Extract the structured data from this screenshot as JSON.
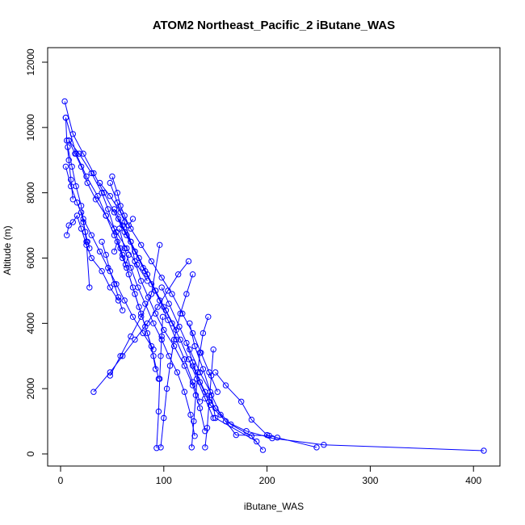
{
  "chart_data": {
    "type": "line",
    "title": "ATOM2 Northeast_Pacific_2 iButane_WAS",
    "xlabel": "iButane_WAS",
    "ylabel": "Altitude (m)",
    "xlim": [
      0,
      425
    ],
    "ylim": [
      0,
      12000
    ],
    "xticks": [
      0,
      100,
      200,
      300,
      400
    ],
    "yticks": [
      0,
      2000,
      4000,
      6000,
      8000,
      10000,
      12000
    ],
    "xtick_labels": [
      "0",
      "100",
      "200",
      "300",
      "400"
    ],
    "ytick_labels": [
      "0",
      "2000",
      "4000",
      "6000",
      "8000",
      "10000",
      "12000"
    ],
    "series_color": "#0000ff",
    "marker": "open-circle",
    "grid": false,
    "legend": "none",
    "series": [
      {
        "x": [
          410,
          255,
          205,
          180,
          160,
          145,
          135,
          128,
          122
        ],
        "y": [
          100,
          280,
          480,
          700,
          1000,
          1500,
          2200,
          2800,
          3400
        ]
      },
      {
        "x": [
          190,
          150,
          146,
          138,
          130,
          125
        ],
        "y": [
          380,
          1100,
          1800,
          2600,
          3300,
          4000
        ]
      },
      {
        "x": [
          248,
          210,
          200,
          185,
          175,
          160,
          150
        ],
        "y": [
          200,
          500,
          580,
          1050,
          1600,
          2100,
          2500
        ]
      },
      {
        "x": [
          196,
          185,
          165,
          150,
          140,
          128
        ],
        "y": [
          120,
          550,
          900,
          1400,
          1900,
          2700
        ]
      },
      {
        "x": [
          202,
          170,
          155,
          145,
          135,
          125,
          115,
          105,
          98
        ],
        "y": [
          560,
          580,
          1200,
          1900,
          2500,
          3200,
          3900,
          4600,
          5100
        ]
      },
      {
        "x": [
          93,
          95,
          96,
          97,
          98,
          99
        ],
        "y": [
          180,
          1300,
          2300,
          3000,
          3600,
          4200
        ]
      },
      {
        "x": [
          97,
          100,
          103,
          106,
          110,
          116,
          122,
          128
        ],
        "y": [
          200,
          1100,
          2000,
          2700,
          3500,
          4300,
          4900,
          5500
        ]
      },
      {
        "x": [
          127,
          129,
          131,
          133,
          135,
          138,
          143
        ],
        "y": [
          200,
          1000,
          1800,
          2500,
          3100,
          3700,
          4200
        ]
      },
      {
        "x": [
          140,
          142,
          144,
          146,
          148
        ],
        "y": [
          200,
          800,
          1600,
          2400,
          3200
        ]
      },
      {
        "x": [
          130,
          126,
          120,
          113,
          105,
          98,
          90,
          82,
          75,
          68,
          62,
          57
        ],
        "y": [
          550,
          1200,
          1900,
          2500,
          3000,
          3500,
          4000,
          4600,
          5100,
          5700,
          6300,
          6900
        ]
      },
      {
        "x": [
          140,
          135,
          128,
          120,
          110,
          100,
          92,
          85,
          78,
          72,
          68,
          62,
          55,
          48
        ],
        "y": [
          700,
          1400,
          2100,
          2700,
          3300,
          3800,
          4300,
          4800,
          5300,
          5900,
          6500,
          7100,
          7700,
          8300
        ]
      },
      {
        "x": [
          92,
          88,
          82,
          76,
          70,
          64,
          58,
          52,
          46,
          40,
          30,
          18,
          8
        ],
        "y": [
          2600,
          3300,
          3900,
          4500,
          5100,
          5700,
          6300,
          6900,
          7500,
          8000,
          8600,
          9200,
          9600
        ]
      },
      {
        "x": [
          95,
          90,
          84,
          78,
          72,
          66,
          60,
          52,
          44,
          36,
          25,
          15,
          5
        ],
        "y": [
          2300,
          3000,
          3700,
          4300,
          4900,
          5500,
          6100,
          6700,
          7300,
          7900,
          8500,
          9200,
          10300
        ]
      },
      {
        "x": [
          148,
          140,
          132,
          124,
          116,
          108,
          100,
          92,
          84,
          76,
          68,
          60,
          52
        ],
        "y": [
          1100,
          1700,
          2300,
          2900,
          3500,
          4000,
          4500,
          5000,
          5500,
          6000,
          6500,
          7000,
          7500
        ]
      },
      {
        "x": [
          135,
          128,
          120,
          112,
          104,
          96,
          88,
          80,
          72,
          64,
          56
        ],
        "y": [
          1600,
          2200,
          2900,
          3500,
          4100,
          4700,
          5200,
          5700,
          6200,
          6700,
          7200
        ]
      },
      {
        "x": [
          152,
          144,
          136,
          128,
          118,
          108,
          98,
          88,
          78,
          68,
          58,
          48,
          38
        ],
        "y": [
          1900,
          2500,
          3100,
          3700,
          4300,
          4900,
          5400,
          5900,
          6400,
          6900,
          7400,
          7900,
          8300
        ]
      },
      {
        "x": [
          32,
          48,
          60,
          72,
          84,
          94,
          104,
          114,
          124
        ],
        "y": [
          1900,
          2500,
          3000,
          3500,
          4000,
          4500,
          5000,
          5500,
          5900
        ]
      },
      {
        "x": [
          48,
          58,
          68,
          78,
          88,
          96
        ],
        "y": [
          2400,
          3000,
          3600,
          4200,
          4900,
          6400
        ]
      },
      {
        "x": [
          4,
          12,
          22,
          32,
          42,
          52,
          62,
          72,
          82,
          92,
          102,
          112
        ],
        "y": [
          10800,
          9800,
          9200,
          8600,
          8000,
          7400,
          6800,
          6200,
          5600,
          5000,
          4400,
          3800
        ]
      },
      {
        "x": [
          5,
          10,
          16,
          22,
          30,
          38,
          46,
          54,
          62,
          70,
          80,
          90
        ],
        "y": [
          8800,
          8200,
          7700,
          7200,
          6700,
          6200,
          5700,
          5200,
          4700,
          4200,
          3700,
          3200
        ]
      },
      {
        "x": [
          6,
          8,
          12,
          16,
          20,
          25,
          30,
          40,
          48,
          56
        ],
        "y": [
          6700,
          7000,
          7100,
          7300,
          6900,
          6400,
          6000,
          5600,
          5100,
          4700
        ]
      },
      {
        "x": [
          8,
          14,
          20,
          26,
          34,
          44,
          54,
          64,
          74,
          84
        ],
        "y": [
          9600,
          9200,
          8800,
          8300,
          7800,
          7300,
          6800,
          6300,
          5800,
          5300
        ]
      },
      {
        "x": [
          7,
          11,
          15,
          20,
          25,
          28
        ],
        "y": [
          9400,
          8800,
          8200,
          7600,
          6500,
          5100
        ]
      },
      {
        "x": [
          50,
          55,
          58,
          62,
          66,
          70
        ],
        "y": [
          8500,
          8000,
          7600,
          7300,
          7000,
          7200
        ]
      },
      {
        "x": [
          52,
          55,
          60,
          63,
          66
        ],
        "y": [
          6200,
          6500,
          6000,
          5800,
          6100
        ]
      },
      {
        "x": [
          5,
          6,
          8,
          10,
          12
        ],
        "y": [
          10300,
          9600,
          9000,
          8400,
          7800
        ]
      },
      {
        "x": [
          20,
          22,
          24,
          26,
          28
        ],
        "y": [
          7400,
          7100,
          6800,
          6500,
          6300
        ]
      },
      {
        "x": [
          40,
          44,
          48,
          52,
          56,
          60
        ],
        "y": [
          6500,
          6100,
          5600,
          5200,
          4800,
          4400
        ]
      }
    ]
  }
}
